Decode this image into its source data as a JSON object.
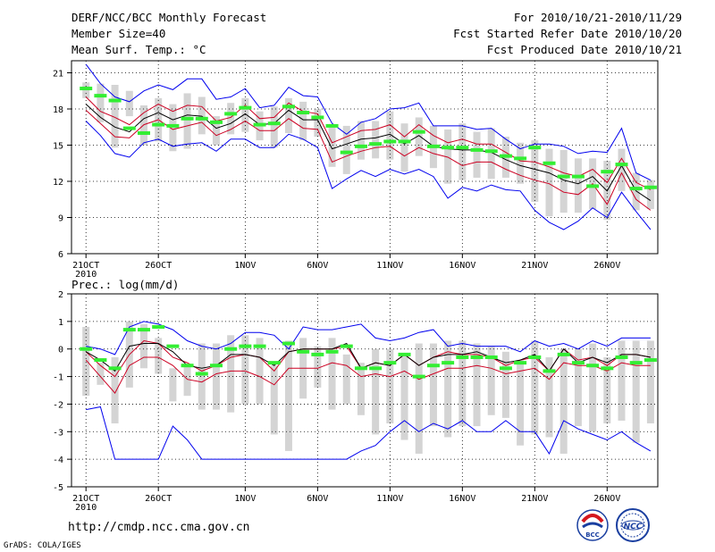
{
  "header": {
    "title": "DERF/NCC/BCC Monthly Forecast",
    "member_size": "Member Size=40",
    "variable": "Mean Surf. Temp.: °C",
    "period": "For 2010/10/21-2010/11/29",
    "started": "Fcst Started Refer Date 2010/10/20",
    "produced": "Fcst Produced Date 2010/10/21"
  },
  "footer": {
    "url": "http://cmdp.ncc.cma.gov.cn",
    "grads": "GrADS: COLA/IGES",
    "logo_bcc": "BCC",
    "logo_ncc": "NCC"
  },
  "colors": {
    "envelope": "#0000ee",
    "spread": "#cc0022",
    "mean": "#000000",
    "median": "#33ee33",
    "box": "#d4d4d4"
  },
  "chart_data": [
    {
      "type": "line",
      "title": "Mean Surf. Temp.: °C",
      "ylim": [
        6,
        22
      ],
      "yticks": [
        6,
        9,
        12,
        15,
        18,
        21
      ],
      "ytick_labels": [
        "6",
        "9",
        "12",
        "15",
        "18",
        "21"
      ],
      "x_tick_days": [
        1,
        6,
        12,
        17,
        22,
        27,
        32,
        37
      ],
      "x_tick_labels": [
        "21OCT",
        "26OCT",
        "1NOV",
        "6NOV",
        "11NOV",
        "16NOV",
        "21NOV",
        "26NOV"
      ],
      "x_sub_label": "2010",
      "days": 40,
      "series": [
        {
          "name": "max",
          "values": [
            21.7,
            20.1,
            19.0,
            18.6,
            19.5,
            20.0,
            19.6,
            20.5,
            20.5,
            18.8,
            19.0,
            19.7,
            18.1,
            18.3,
            19.8,
            19.1,
            19.0,
            16.8,
            15.9,
            16.9,
            17.2,
            18.0,
            18.1,
            18.5,
            16.6,
            16.6,
            16.6,
            16.3,
            16.4,
            15.5,
            14.7,
            15.1,
            15.1,
            14.9,
            14.3,
            14.5,
            14.4,
            16.4,
            12.7,
            12.1
          ]
        },
        {
          "name": "upper",
          "values": [
            19.0,
            17.8,
            17.3,
            16.7,
            17.7,
            18.4,
            17.8,
            18.3,
            18.2,
            17.0,
            17.3,
            18.3,
            17.2,
            17.3,
            18.5,
            17.8,
            17.6,
            15.2,
            15.7,
            16.2,
            16.3,
            16.7,
            15.7,
            16.7,
            15.8,
            15.2,
            15.5,
            15.1,
            15.1,
            14.4,
            13.7,
            13.6,
            13.2,
            12.7,
            12.4,
            13.0,
            11.9,
            13.9,
            11.9,
            11.3
          ]
        },
        {
          "name": "mean",
          "values": [
            18.4,
            17.3,
            16.5,
            16.1,
            17.2,
            17.7,
            17.1,
            17.5,
            17.4,
            16.4,
            16.8,
            17.6,
            16.7,
            16.8,
            17.9,
            17.1,
            17.1,
            14.7,
            15.1,
            15.5,
            15.6,
            15.9,
            15.1,
            15.8,
            14.9,
            14.7,
            14.6,
            14.6,
            14.4,
            13.8,
            13.3,
            13.0,
            12.7,
            12.1,
            11.8,
            12.4,
            11.2,
            13.3,
            11.2,
            10.4
          ]
        },
        {
          "name": "lower",
          "values": [
            17.9,
            16.8,
            15.7,
            15.6,
            16.7,
            17.1,
            16.3,
            16.6,
            16.9,
            15.8,
            16.3,
            17.0,
            16.2,
            16.2,
            17.2,
            16.4,
            16.3,
            13.6,
            14.1,
            14.5,
            14.8,
            14.9,
            14.1,
            14.8,
            14.3,
            14.0,
            13.3,
            13.6,
            13.6,
            13.0,
            12.5,
            12.1,
            11.8,
            11.1,
            10.9,
            11.8,
            10.1,
            12.7,
            10.5,
            9.6
          ]
        },
        {
          "name": "min",
          "values": [
            17.0,
            15.8,
            14.3,
            14.0,
            15.2,
            15.5,
            14.9,
            15.1,
            15.2,
            14.5,
            15.5,
            15.5,
            14.8,
            14.8,
            15.9,
            15.5,
            14.8,
            11.4,
            12.2,
            12.9,
            12.4,
            13.0,
            12.6,
            13.0,
            12.4,
            10.6,
            11.5,
            11.2,
            11.7,
            11.3,
            11.2,
            9.6,
            8.6,
            8.0,
            8.7,
            9.8,
            9.0,
            11.1,
            9.5,
            8.0
          ]
        },
        {
          "name": "median",
          "values": [
            19.7,
            19.1,
            18.7,
            16.4,
            16.0,
            16.7,
            16.6,
            17.2,
            17.2,
            16.9,
            17.6,
            18.1,
            16.7,
            16.8,
            18.2,
            17.7,
            17.3,
            16.6,
            14.4,
            14.9,
            15.1,
            15.3,
            15.3,
            16.1,
            14.9,
            14.8,
            14.8,
            14.6,
            14.5,
            14.1,
            13.9,
            14.8,
            13.5,
            12.4,
            12.4,
            11.6,
            12.8,
            13.4,
            11.4,
            11.5
          ]
        },
        {
          "name": "box_top",
          "values": [
            20.2,
            20.1,
            20.0,
            19.5,
            18.3,
            18.9,
            18.4,
            19.3,
            19.0,
            17.4,
            18.5,
            18.9,
            17.8,
            18.2,
            18.9,
            18.6,
            18.0,
            16.6,
            16.6,
            17.0,
            17.0,
            17.8,
            16.8,
            17.3,
            16.6,
            16.3,
            16.8,
            16.1,
            16.4,
            15.7,
            15.2,
            15.4,
            14.7,
            14.6,
            13.9,
            13.9,
            13.7,
            14.7,
            12.7,
            12.1
          ]
        },
        {
          "name": "box_bottom",
          "values": [
            18.9,
            16.9,
            14.8,
            17.4,
            15.0,
            15.3,
            14.5,
            14.7,
            15.9,
            15.0,
            15.9,
            16.1,
            15.4,
            14.8,
            16.0,
            15.4,
            15.7,
            13.2,
            12.6,
            13.8,
            13.9,
            13.8,
            12.8,
            14.1,
            13.1,
            11.8,
            12.1,
            12.3,
            12.2,
            12.3,
            11.8,
            10.3,
            9.1,
            9.4,
            9.4,
            9.7,
            8.8,
            11.2,
            9.6,
            9.7
          ]
        }
      ]
    },
    {
      "type": "line",
      "title": "Prec.: log(mm/d)",
      "ylim": [
        -5,
        2
      ],
      "yticks": [
        -5,
        -4,
        -3,
        -2,
        -1,
        0,
        1,
        2
      ],
      "ytick_labels": [
        "-5",
        "-4",
        "-3",
        "-2",
        "-1",
        "0",
        "1",
        "2"
      ],
      "x_tick_days": [
        1,
        6,
        12,
        17,
        22,
        27,
        32,
        37
      ],
      "x_tick_labels": [
        "21OCT",
        "26OCT",
        "1NOV",
        "6NOV",
        "11NOV",
        "16NOV",
        "21NOV",
        "26NOV"
      ],
      "x_sub_label": "2010",
      "days": 40,
      "series": [
        {
          "name": "max",
          "values": [
            0.1,
            0.0,
            -0.2,
            0.8,
            1.0,
            0.9,
            0.7,
            0.3,
            0.1,
            0.0,
            0.2,
            0.6,
            0.6,
            0.5,
            0.0,
            0.8,
            0.7,
            0.7,
            0.8,
            0.9,
            0.4,
            0.3,
            0.4,
            0.6,
            0.7,
            0.1,
            0.2,
            0.1,
            0.1,
            0.1,
            -0.1,
            0.3,
            0.1,
            0.2,
            0.0,
            0.3,
            0.1,
            0.4,
            0.4,
            0.4
          ]
        },
        {
          "name": "upper",
          "values": [
            -0.1,
            -0.6,
            -1.0,
            -0.2,
            0.3,
            0.2,
            -0.3,
            -0.5,
            -0.8,
            -0.6,
            -0.3,
            -0.2,
            -0.3,
            -0.8,
            -0.1,
            0.0,
            0.0,
            0.0,
            0.1,
            -0.7,
            -0.5,
            -0.6,
            -0.2,
            -0.6,
            -0.3,
            -0.1,
            -0.2,
            -0.2,
            -0.3,
            -0.6,
            -0.4,
            -0.3,
            -0.8,
            0.0,
            -0.4,
            -0.3,
            -0.6,
            -0.2,
            -0.2,
            -0.3
          ]
        },
        {
          "name": "mean",
          "values": [
            -0.1,
            -0.4,
            -0.8,
            0.1,
            0.2,
            0.2,
            -0.1,
            -0.6,
            -0.7,
            -0.6,
            -0.2,
            -0.2,
            -0.3,
            -0.6,
            -0.1,
            0.0,
            0.0,
            0.0,
            0.2,
            -0.7,
            -0.5,
            -0.6,
            -0.2,
            -0.6,
            -0.3,
            -0.2,
            -0.2,
            -0.1,
            -0.3,
            -0.5,
            -0.4,
            -0.2,
            -0.8,
            0.0,
            -0.5,
            -0.3,
            -0.5,
            -0.2,
            -0.2,
            -0.3
          ]
        },
        {
          "name": "lower",
          "values": [
            -0.4,
            -1.0,
            -1.6,
            -0.6,
            -0.3,
            -0.3,
            -0.6,
            -1.1,
            -1.2,
            -0.9,
            -0.8,
            -0.8,
            -1.0,
            -1.3,
            -0.7,
            -0.7,
            -0.7,
            -0.5,
            -0.6,
            -1.0,
            -0.9,
            -1.0,
            -0.8,
            -1.1,
            -0.9,
            -0.7,
            -0.7,
            -0.6,
            -0.7,
            -0.9,
            -0.8,
            -0.7,
            -1.1,
            -0.5,
            -0.6,
            -0.6,
            -0.8,
            -0.5,
            -0.6,
            -0.6
          ]
        },
        {
          "name": "min",
          "values": [
            -2.2,
            -2.1,
            -4.0,
            -4.0,
            -4.0,
            -4.0,
            -2.8,
            -3.3,
            -4.0,
            -4.0,
            -4.0,
            -4.0,
            -4.0,
            -4.0,
            -4.0,
            -4.0,
            -4.0,
            -4.0,
            -4.0,
            -3.7,
            -3.5,
            -3.0,
            -2.6,
            -3.0,
            -2.7,
            -2.9,
            -2.6,
            -3.0,
            -3.0,
            -2.6,
            -3.0,
            -3.0,
            -3.8,
            -2.6,
            -2.9,
            -3.1,
            -3.3,
            -3.0,
            -3.4,
            -3.7
          ]
        },
        {
          "name": "median",
          "values": [
            0.0,
            -0.4,
            -0.7,
            0.7,
            0.7,
            0.8,
            0.1,
            -0.6,
            -0.9,
            -0.6,
            0.0,
            0.1,
            0.1,
            -0.5,
            0.2,
            -0.1,
            -0.2,
            -0.1,
            0.1,
            -0.7,
            -0.7,
            -0.5,
            -0.2,
            -1.0,
            -0.6,
            -0.5,
            -0.3,
            -0.3,
            -0.3,
            -0.7,
            -0.5,
            -0.3,
            -0.8,
            -0.2,
            -0.5,
            -0.6,
            -0.7,
            -0.3,
            -0.5,
            -0.4
          ]
        },
        {
          "name": "box_top",
          "values": [
            0.8,
            -0.5,
            -0.3,
            1.0,
            0.9,
            0.4,
            -0.7,
            -0.6,
            0.2,
            0.2,
            0.5,
            0.5,
            0.4,
            -0.6,
            0.3,
            0.4,
            0.1,
            0.4,
            -0.2,
            -0.5,
            0.0,
            0.0,
            -0.2,
            0.2,
            0.2,
            0.3,
            0.3,
            0.2,
            0.1,
            -0.1,
            -0.4,
            0.3,
            -0.3,
            0.0,
            0.0,
            0.2,
            -0.3,
            0.3,
            0.3,
            0.3
          ]
        },
        {
          "name": "box_bottom",
          "values": [
            -1.7,
            -1.3,
            -2.7,
            -1.4,
            -0.7,
            -0.9,
            -1.9,
            -1.7,
            -2.2,
            -2.2,
            -2.3,
            -2.0,
            -2.0,
            -3.1,
            -3.7,
            -1.8,
            -1.4,
            -2.2,
            -2.0,
            -2.4,
            -3.1,
            -2.7,
            -3.3,
            -3.8,
            -2.8,
            -3.2,
            -2.8,
            -2.8,
            -2.4,
            -2.5,
            -3.5,
            -3.1,
            -3.2,
            -3.8,
            -2.8,
            -3.0,
            -2.7,
            -2.6,
            -3.4,
            -2.7
          ]
        }
      ]
    }
  ]
}
